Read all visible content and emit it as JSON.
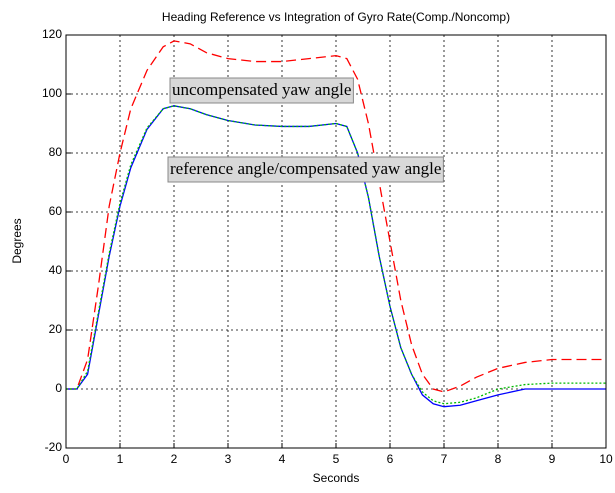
{
  "chart_data": {
    "type": "line",
    "title": "Heading Reference vs Integration of Gyro Rate(Comp./Noncomp)",
    "xlabel": "Seconds",
    "ylabel": "Degrees",
    "x": [
      0,
      0.2,
      0.4,
      0.6,
      0.8,
      1.0,
      1.2,
      1.5,
      1.8,
      2.0,
      2.3,
      2.6,
      3.0,
      3.5,
      4.0,
      4.5,
      5.0,
      5.2,
      5.4,
      5.6,
      5.8,
      6.0,
      6.2,
      6.4,
      6.6,
      6.8,
      7.0,
      7.3,
      7.6,
      8.0,
      8.5,
      9.0,
      9.5,
      10
    ],
    "series": [
      {
        "color": "#ff0000",
        "linestyle": "dashed",
        "values": [
          0,
          0,
          10,
          35,
          62,
          80,
          95,
          108,
          116,
          118,
          117,
          114,
          112,
          111,
          111,
          112,
          113,
          112,
          105,
          90,
          70,
          50,
          30,
          15,
          5,
          0,
          -1,
          1,
          4,
          7,
          9,
          10,
          10,
          10
        ]
      },
      {
        "color": "#0000ff",
        "linestyle": "solid",
        "values": [
          0,
          0,
          5,
          25,
          45,
          62,
          75,
          88,
          95,
          96,
          95,
          93,
          91,
          89.5,
          89,
          89,
          90,
          89,
          80,
          65,
          45,
          28,
          14,
          5,
          -2,
          -5,
          -6,
          -5.5,
          -4,
          -2,
          0,
          0,
          0,
          0
        ]
      },
      {
        "color": "#00bb00",
        "linestyle": "dotted",
        "values": [
          0,
          0,
          6,
          26,
          46,
          63,
          76,
          88.5,
          95,
          96,
          95,
          93,
          91,
          89.5,
          89,
          89,
          90,
          89,
          80,
          65,
          45,
          28,
          14,
          5,
          -1,
          -4,
          -5,
          -4.5,
          -3,
          0,
          1.5,
          2,
          2,
          2
        ]
      }
    ],
    "xlim": [
      0,
      10
    ],
    "xticks": [
      0,
      1,
      2,
      3,
      4,
      5,
      6,
      7,
      8,
      9,
      10
    ],
    "ylim": [
      -20,
      120
    ],
    "yticks": [
      -20,
      0,
      20,
      40,
      60,
      80,
      100,
      120
    ],
    "grid": true,
    "annotations": [
      "uncompensated yaw angle",
      "reference angle/compensated yaw angle"
    ]
  }
}
